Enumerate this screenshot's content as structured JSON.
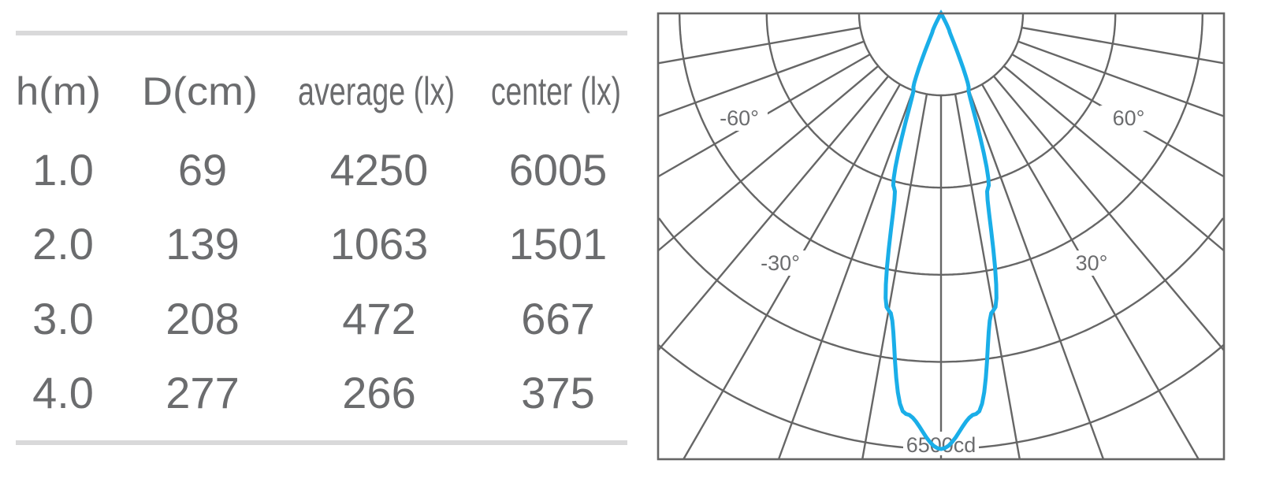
{
  "table": {
    "headers": [
      "h(m)",
      "D(cm)",
      "average (lx)",
      "center (lx)"
    ],
    "rows": [
      [
        "1.0",
        "69",
        "4250",
        "6005"
      ],
      [
        "2.0",
        "139",
        "1063",
        "1501"
      ],
      [
        "3.0",
        "208",
        "472",
        "667"
      ],
      [
        "4.0",
        "277",
        "266",
        "375"
      ]
    ],
    "rule_color": "#d9d9da",
    "text_color": "#6b6c6e"
  },
  "chart_data": {
    "type": "polar",
    "title": "",
    "unit": "cd",
    "max_label": "6500cd",
    "rmax": 6500,
    "rings": [
      1300,
      2600,
      3900,
      5200,
      6500
    ],
    "radial_step_deg": 10,
    "angle_labels": [
      "-60°",
      "60°",
      "-30°",
      "30°"
    ],
    "grid": true,
    "grid_color": "#666666",
    "series": [
      {
        "color": "#1aaee8",
        "angles": [
          0,
          5,
          10,
          15,
          20,
          25,
          30
        ],
        "values": [
          6500,
          6000,
          4500,
          2700,
          1200,
          300,
          0
        ]
      }
    ]
  }
}
